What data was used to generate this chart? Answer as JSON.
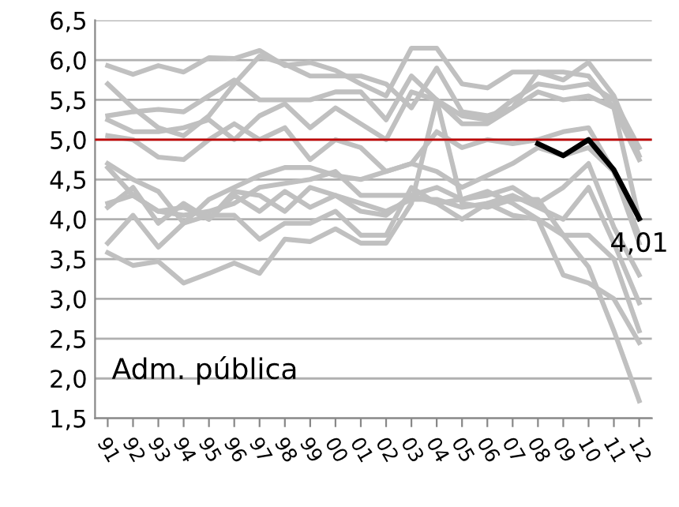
{
  "chart_data": {
    "type": "line",
    "categories": [
      "91",
      "92",
      "93",
      "94",
      "95",
      "96",
      "97",
      "98",
      "99",
      "00",
      "01",
      "02",
      "03",
      "04",
      "05",
      "06",
      "07",
      "08",
      "09",
      "10",
      "11",
      "12"
    ],
    "ylim": [
      1.5,
      6.5
    ],
    "yticks": [
      {
        "value": 1.5,
        "label": "1,5"
      },
      {
        "value": 2.0,
        "label": "2,0"
      },
      {
        "value": 2.5,
        "label": "2,5"
      },
      {
        "value": 3.0,
        "label": "3,0"
      },
      {
        "value": 3.5,
        "label": "3,5"
      },
      {
        "value": 4.0,
        "label": "4,0"
      },
      {
        "value": 4.5,
        "label": "4,5"
      },
      {
        "value": 5.0,
        "label": "5,0"
      },
      {
        "value": 5.5,
        "label": "5,5"
      },
      {
        "value": 6.0,
        "label": "6,0"
      },
      {
        "value": 6.5,
        "label": "6,5"
      }
    ],
    "grid": "y",
    "legend": false,
    "marker": "none",
    "line_style": "solid",
    "series": [
      {
        "color": "#c0c0c0",
        "values": [
          5.93,
          5.82,
          5.93,
          5.85,
          6.03,
          6.02,
          6.12,
          5.93,
          5.97,
          5.87,
          5.7,
          5.55,
          6.15,
          6.15,
          5.7,
          5.65,
          5.85,
          5.85,
          5.75,
          5.97,
          5.55,
          4.8
        ]
      },
      {
        "color": "#c0c0c0",
        "values": [
          5.7,
          5.4,
          5.15,
          5.05,
          5.3,
          5.7,
          6.05,
          5.95,
          5.8,
          5.8,
          5.8,
          5.7,
          5.4,
          5.9,
          5.35,
          5.3,
          5.4,
          5.85,
          5.85,
          5.8,
          5.4,
          4.75
        ]
      },
      {
        "color": "#c0c0c0",
        "values": [
          5.3,
          5.35,
          5.38,
          5.35,
          5.55,
          5.75,
          5.5,
          5.5,
          5.5,
          5.6,
          5.6,
          5.25,
          5.8,
          5.5,
          5.3,
          5.25,
          5.5,
          5.7,
          5.65,
          5.7,
          5.5,
          4.9
        ]
      },
      {
        "color": "#c0c0c0",
        "values": [
          5.25,
          5.1,
          5.1,
          5.15,
          5.25,
          5.0,
          5.3,
          5.45,
          5.15,
          5.4,
          5.2,
          5.0,
          5.6,
          5.5,
          5.2,
          5.2,
          5.4,
          5.6,
          5.5,
          5.55,
          5.4,
          4.0
        ]
      },
      {
        "color": "#c0c0c0",
        "values": [
          5.05,
          5.0,
          4.78,
          4.75,
          5.0,
          5.2,
          5.0,
          5.15,
          4.75,
          5.0,
          4.9,
          4.6,
          4.7,
          5.1,
          4.9,
          5.0,
          4.95,
          5.0,
          5.1,
          5.15,
          4.6,
          3.8
        ]
      },
      {
        "color": "#c0c0c0",
        "values": [
          4.7,
          4.5,
          4.35,
          3.95,
          4.25,
          4.4,
          4.55,
          4.65,
          4.65,
          4.55,
          4.5,
          4.6,
          4.7,
          4.6,
          4.4,
          4.55,
          4.7,
          4.9,
          4.8,
          4.9,
          4.6,
          3.7
        ]
      },
      {
        "color": "#c0c0c0",
        "values": [
          4.65,
          4.3,
          4.1,
          4.05,
          4.1,
          4.2,
          4.4,
          4.45,
          4.5,
          4.6,
          4.3,
          4.3,
          4.3,
          4.4,
          4.25,
          4.3,
          4.4,
          4.2,
          4.4,
          4.7,
          3.9,
          3.3
        ]
      },
      {
        "color": "#c0c0c0",
        "values": [
          4.15,
          4.4,
          3.95,
          4.2,
          4.0,
          4.3,
          4.1,
          4.35,
          4.15,
          4.3,
          4.1,
          4.05,
          4.3,
          4.2,
          4.0,
          4.2,
          4.3,
          4.15,
          4.0,
          4.4,
          3.7,
          2.95
        ]
      },
      {
        "color": "#c0c0c0",
        "values": [
          4.2,
          4.3,
          4.1,
          4.15,
          4.0,
          4.35,
          4.3,
          4.1,
          4.4,
          4.3,
          4.2,
          4.1,
          4.25,
          4.25,
          4.15,
          4.2,
          4.05,
          4.0,
          3.8,
          3.8,
          3.5,
          2.6
        ]
      },
      {
        "color": "#c0c0c0",
        "values": [
          3.7,
          4.05,
          3.65,
          3.95,
          4.05,
          4.05,
          3.75,
          3.95,
          3.95,
          4.1,
          3.8,
          3.8,
          4.4,
          4.2,
          4.25,
          4.35,
          4.2,
          4.0,
          3.3,
          3.2,
          3.0,
          2.45
        ]
      },
      {
        "color": "#c0c0c0",
        "values": [
          3.58,
          3.42,
          3.47,
          3.2,
          3.32,
          3.45,
          3.32,
          3.75,
          3.72,
          3.88,
          3.7,
          3.7,
          4.2,
          5.5,
          4.2,
          4.15,
          4.25,
          4.25,
          3.8,
          3.4,
          2.6,
          1.72
        ]
      },
      {
        "color": "#000000",
        "values": [
          null,
          null,
          null,
          null,
          null,
          null,
          null,
          null,
          null,
          null,
          null,
          null,
          null,
          null,
          null,
          null,
          null,
          4.95,
          4.8,
          5.0,
          4.62,
          4.01
        ],
        "value_labels": [
          null,
          null,
          null,
          null,
          null,
          null,
          null,
          null,
          null,
          null,
          null,
          null,
          null,
          null,
          null,
          null,
          null,
          null,
          null,
          null,
          null,
          "4,01"
        ]
      }
    ],
    "ref_lines": [
      {
        "axis": "y",
        "value": 5.0,
        "color": "#c00000"
      }
    ],
    "annotations": [
      "Adm. pública"
    ]
  }
}
